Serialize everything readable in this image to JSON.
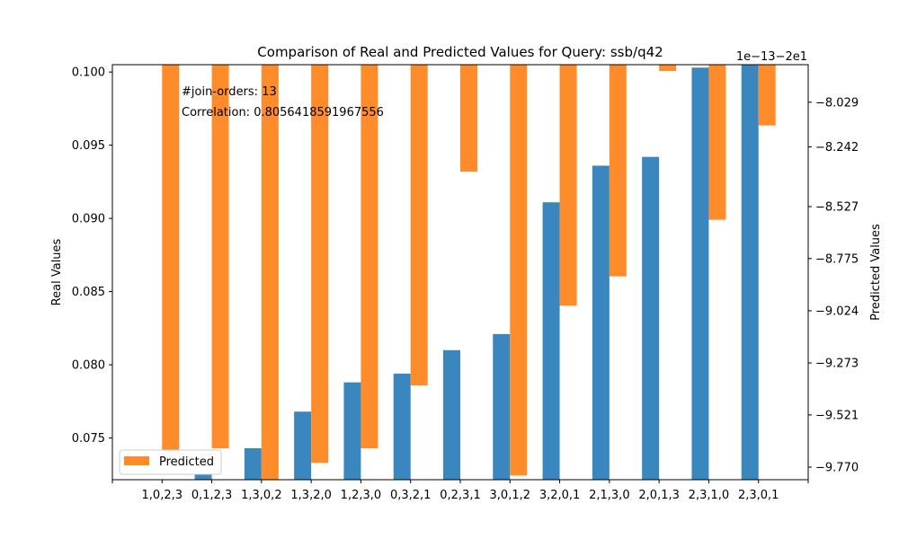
{
  "chart_data": {
    "type": "bar",
    "title": "Comparison of Real and Predicted Values for Query: ssb/q42",
    "categories": [
      "1,0,2,3",
      "0,1,2,3",
      "1,3,0,2",
      "1,3,2,0",
      "1,2,3,0",
      "0,3,2,1",
      "0,2,3,1",
      "3,0,1,2",
      "3,2,0,1",
      "2,1,3,0",
      "2,0,1,3",
      "2,3,1,0",
      "2,3,0,1"
    ],
    "real": {
      "ylabel": "Real Values",
      "ylim": [
        0.07215,
        0.1005
      ],
      "yticks": [
        "0.075",
        "0.080",
        "0.085",
        "0.090",
        "0.095",
        "0.100"
      ],
      "values": [
        0.0705,
        0.0731,
        0.0743,
        0.0768,
        0.0788,
        0.0794,
        0.081,
        0.0821,
        0.0911,
        0.0936,
        0.0942,
        0.1003,
        0.1006
      ],
      "color": "#3a87c0"
    },
    "predicted": {
      "name": "Predicted",
      "ylabel": "Predicted Values",
      "offset_text": "1e−13−2e1",
      "yticks": [
        "−8.029",
        "−8.242",
        "−8.527",
        "−8.775",
        "−9.024",
        "−9.273",
        "−9.521",
        "−9.770"
      ],
      "ytick_values": [
        -8.029,
        -8.242,
        -8.527,
        -8.775,
        -9.024,
        -9.273,
        -9.521,
        -9.77
      ],
      "ylim": [
        -9.83,
        -7.85
      ],
      "values": [
        -9.72,
        -9.68,
        -9.83,
        -9.75,
        -9.68,
        -9.38,
        -8.36,
        -9.81,
        -9.0,
        -8.86,
        -7.88,
        -8.59,
        -8.14
      ],
      "color": "#ff8c2a"
    },
    "annotations": [
      "#join-orders: 13",
      "Correlation: 0.8056418591967556"
    ],
    "legend": {
      "position": "lower-left",
      "label": "Predicted"
    },
    "grid": false
  }
}
